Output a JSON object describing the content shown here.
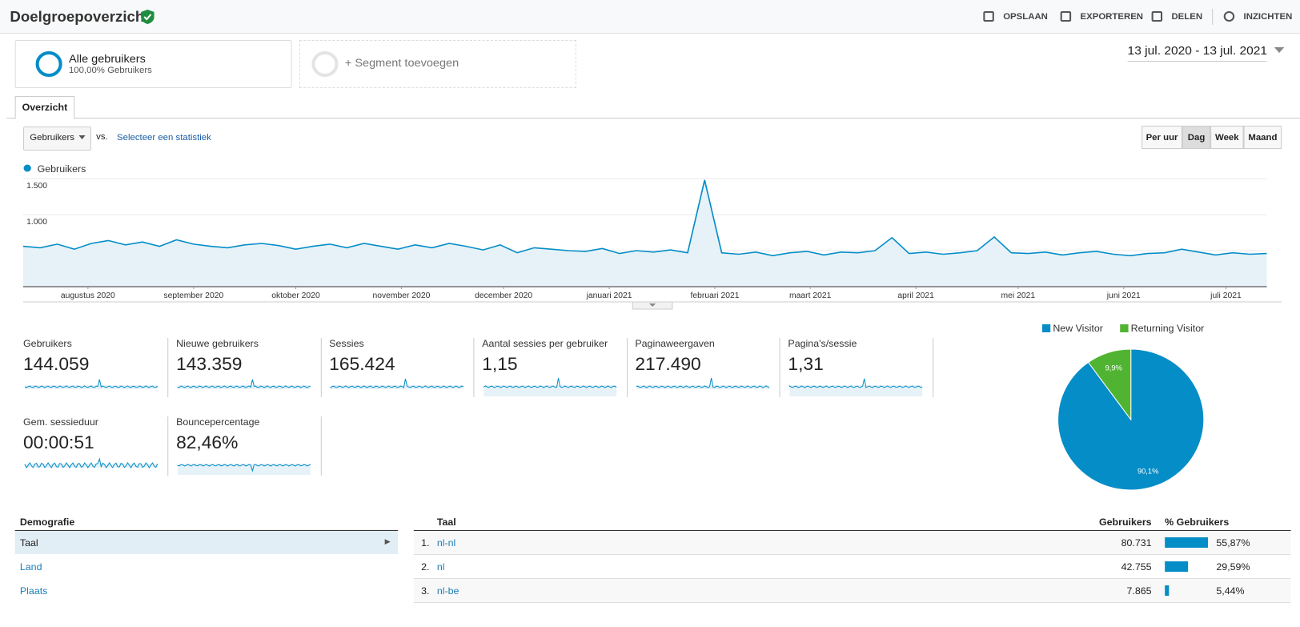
{
  "header": {
    "title": "Doelgroepoverzicht",
    "actions": [
      "OPSLAAN",
      "EXPORTEREN",
      "DELEN",
      "INZICHTEN"
    ]
  },
  "segments": {
    "active": {
      "name": "Alle gebruikers",
      "detail": "100,00% Gebruikers"
    },
    "add": "+ Segment toevoegen"
  },
  "date_range": "13 jul. 2020 - 13 jul. 2021",
  "tab": "Overzicht",
  "controls": {
    "metric": "Gebruikers",
    "vs": "vs.",
    "compare": "Selecteer een statistiek",
    "granularity": [
      "Per uur",
      "Dag",
      "Week",
      "Maand"
    ],
    "active_granularity": "Dag"
  },
  "chart_data": [
    {
      "type": "line",
      "series": [
        {
          "name": "Gebruikers",
          "color": "#058dc7",
          "values": [
            560,
            540,
            590,
            520,
            600,
            640,
            580,
            620,
            560,
            650,
            590,
            560,
            540,
            580,
            600,
            570,
            520,
            560,
            590,
            540,
            600,
            560,
            520,
            580,
            540,
            600,
            560,
            510,
            580,
            470,
            540,
            520,
            500,
            490,
            530,
            460,
            500,
            480,
            510,
            470,
            1480,
            470,
            450,
            480,
            430,
            470,
            490,
            440,
            480,
            470,
            500,
            680,
            460,
            480,
            450,
            470,
            500,
            690,
            470,
            460,
            480,
            440,
            470,
            490,
            450,
            430,
            460,
            470,
            520,
            480,
            440,
            470,
            450,
            460
          ]
        }
      ],
      "xlim": [
        0,
        73
      ],
      "xticks": [
        {
          "value": 3.8,
          "label": "augustus 2020"
        },
        {
          "value": 10,
          "label": "september 2020"
        },
        {
          "value": 16,
          "label": "oktober 2020"
        },
        {
          "value": 22.2,
          "label": "november 2020"
        },
        {
          "value": 28.2,
          "label": "december 2020"
        },
        {
          "value": 34.4,
          "label": "januari 2021"
        },
        {
          "value": 40.6,
          "label": "februari 2021"
        },
        {
          "value": 46.2,
          "label": "maart 2021"
        },
        {
          "value": 52.4,
          "label": "april 2021"
        },
        {
          "value": 58.4,
          "label": "mei 2021"
        },
        {
          "value": 64.6,
          "label": "juni 2021"
        },
        {
          "value": 70.6,
          "label": "juli 2021"
        }
      ],
      "ylim": [
        0,
        1500
      ],
      "yticks": [
        500,
        {
          "value": 1000,
          "label": "1.000"
        },
        {
          "value": 1500,
          "label": "1.500"
        }
      ],
      "grid": true
    },
    {
      "type": "pie",
      "categories": [
        "New Visitor",
        "Returning Visitor"
      ],
      "values": [
        90.1,
        9.9
      ],
      "value_labels": [
        "90,1%",
        "9,9%"
      ],
      "colors": [
        "#058dc7",
        "#50b432"
      ],
      "legend": "top"
    }
  ],
  "metrics": [
    {
      "label": "Gebruikers",
      "value": "144.059"
    },
    {
      "label": "Nieuwe gebruikers",
      "value": "143.359"
    },
    {
      "label": "Sessies",
      "value": "165.424"
    },
    {
      "label": "Aantal sessies per gebruiker",
      "value": "1,15"
    },
    {
      "label": "Paginaweergaven",
      "value": "217.490"
    },
    {
      "label": "Pagina's/sessie",
      "value": "1,31"
    },
    {
      "label": "Gem. sessieduur",
      "value": "00:00:51"
    },
    {
      "label": "Bouncepercentage",
      "value": "82,46%"
    }
  ],
  "demographics": {
    "heading": "Demografie",
    "items": [
      "Taal",
      "Land",
      "Plaats"
    ],
    "selected": 0
  },
  "language_table": {
    "columns": [
      "Taal",
      "Gebruikers",
      "% Gebruikers"
    ],
    "rows": [
      {
        "rank": "1.",
        "language": "nl-nl",
        "users": "80.731",
        "share": 55.87,
        "share_label": "55,87%"
      },
      {
        "rank": "2.",
        "language": "nl",
        "users": "42.755",
        "share": 29.59,
        "share_label": "29,59%"
      },
      {
        "rank": "3.",
        "language": "nl-be",
        "users": "7.865",
        "share": 5.44,
        "share_label": "5,44%"
      }
    ]
  }
}
